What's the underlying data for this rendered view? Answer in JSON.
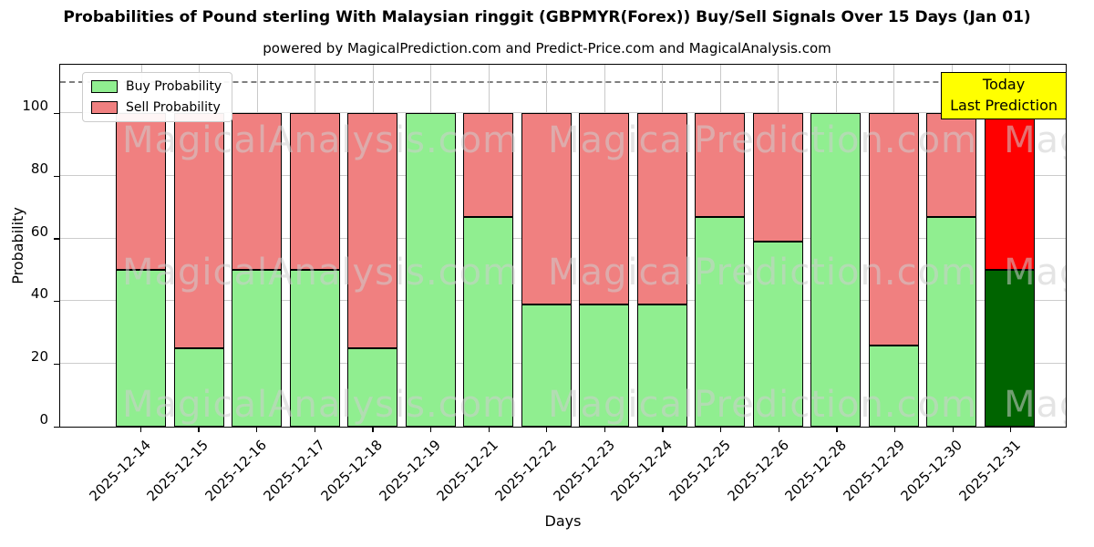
{
  "title": "Probabilities of Pound sterling With Malaysian ringgit (GBPMYR(Forex)) Buy/Sell Signals Over 15 Days (Jan 01)",
  "subtitle": "powered by MagicalPrediction.com and Predict-Price.com and MagicalAnalysis.com",
  "annotation": {
    "line1": "Today",
    "line2": "Last Prediction",
    "bg_color": "#ffff00"
  },
  "watermark_texts": [
    "MagicalAnalysis.com",
    "MagicalPrediction.com"
  ],
  "chart_data": {
    "type": "bar",
    "stacked": true,
    "title": "Probabilities of Pound sterling With Malaysian ringgit (GBPMYR(Forex)) Buy/Sell Signals Over 15 Days (Jan 01)",
    "xlabel": "Days",
    "ylabel": "Probability",
    "ylim": [
      0,
      116
    ],
    "yticks": [
      0,
      20,
      40,
      60,
      80,
      100
    ],
    "grid": true,
    "legend_position": "upper left",
    "dashed_hline_y": 110,
    "categories": [
      "2025-12-14",
      "2025-12-15",
      "2025-12-16",
      "2025-12-17",
      "2025-12-18",
      "2025-12-19",
      "2025-12-21",
      "2025-12-22",
      "2025-12-23",
      "2025-12-24",
      "2025-12-25",
      "2025-12-26",
      "2025-12-28",
      "2025-12-29",
      "2025-12-30",
      "2025-12-31"
    ],
    "series": [
      {
        "name": "Buy Probability",
        "color": "#90ee90",
        "values": [
          50,
          25,
          50,
          50,
          25,
          100,
          67,
          39,
          39,
          39,
          67,
          59,
          100,
          26,
          67,
          50
        ]
      },
      {
        "name": "Sell Probability",
        "color": "#f08080",
        "values": [
          50,
          75,
          50,
          50,
          75,
          0,
          33,
          61,
          61,
          61,
          33,
          41,
          0,
          74,
          33,
          50
        ]
      }
    ],
    "last_bar_colors": {
      "buy": "#006400",
      "sell": "#ff0000"
    }
  }
}
